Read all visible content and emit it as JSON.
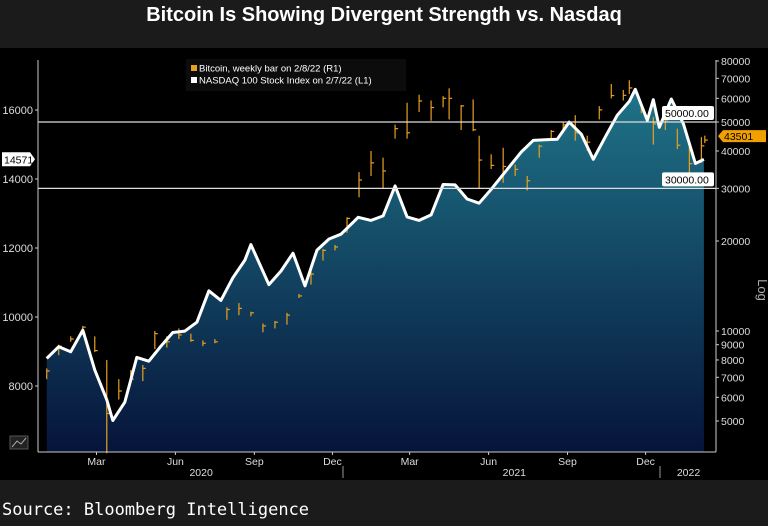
{
  "title": "Bitcoin Is Showing Divergent Strength vs. Nasdaq",
  "source": "Source: Bloomberg Intelligence",
  "chart_data": {
    "type": "line",
    "scale_label": "Log",
    "legend": {
      "placement": "top-center",
      "entries": [
        {
          "label": "Bitcoin, weekly bar on 2/8/22 (R1)",
          "color": "#e8a020"
        },
        {
          "label": "NASDAQ 100 Stock Index on 2/7/22 (L1)",
          "color": "#ffffff"
        }
      ]
    },
    "left_axis": {
      "ticks": [
        "8000",
        "10000",
        "12000",
        "14000",
        "16000"
      ],
      "range": [
        6700,
        17500
      ],
      "last_value_label": "14571"
    },
    "right_axis": {
      "scale": "log",
      "ticks": [
        "5000",
        "6000",
        "7000",
        "8000",
        "9000",
        "10000",
        "20000",
        "30000",
        "40000",
        "50000",
        "60000",
        "70000",
        "80000"
      ],
      "range": [
        4000,
        82000
      ],
      "last_value_label": "43501"
    },
    "reference_lines": [
      {
        "value": 50000,
        "label": "50000.00"
      },
      {
        "value": 30000,
        "label": "30000.00"
      }
    ],
    "x_ticks": [
      "Mar",
      "Jun",
      "Sep",
      "Dec",
      "Mar",
      "Jun",
      "Sep",
      "Dec"
    ],
    "x_tick_dates": [
      "2020-03-01",
      "2020-06-01",
      "2020-09-01",
      "2020-12-01",
      "2021-03-01",
      "2021-06-01",
      "2021-09-01",
      "2021-12-01"
    ],
    "x_years": [
      {
        "label": "2020",
        "date": "2020-07-01"
      },
      {
        "label": "2021",
        "date": "2021-07-01"
      },
      {
        "label": "2022",
        "date": "2022-01-20"
      }
    ],
    "colors": {
      "nasdaq_line": "#ffffff",
      "bitcoin_bars": "#e8a020",
      "area_top": "#1f7488",
      "area_bottom": "#06143a"
    },
    "series": [
      {
        "name": "NASDAQ 100 Stock Index",
        "axis": "left",
        "points": [
          [
            "2020-01-03",
            8800
          ],
          [
            "2020-01-17",
            9140
          ],
          [
            "2020-01-31",
            8990
          ],
          [
            "2020-02-14",
            9620
          ],
          [
            "2020-02-28",
            8460
          ],
          [
            "2020-03-13",
            7600
          ],
          [
            "2020-03-20",
            7000
          ],
          [
            "2020-04-03",
            7530
          ],
          [
            "2020-04-17",
            8830
          ],
          [
            "2020-05-01",
            8720
          ],
          [
            "2020-05-15",
            9150
          ],
          [
            "2020-05-29",
            9550
          ],
          [
            "2020-06-12",
            9590
          ],
          [
            "2020-06-26",
            9850
          ],
          [
            "2020-07-10",
            10760
          ],
          [
            "2020-07-24",
            10480
          ],
          [
            "2020-08-07",
            11140
          ],
          [
            "2020-08-21",
            11650
          ],
          [
            "2020-08-28",
            12100
          ],
          [
            "2020-09-18",
            10940
          ],
          [
            "2020-10-02",
            11330
          ],
          [
            "2020-10-16",
            11850
          ],
          [
            "2020-10-30",
            10900
          ],
          [
            "2020-11-13",
            11940
          ],
          [
            "2020-11-27",
            12260
          ],
          [
            "2020-12-11",
            12400
          ],
          [
            "2020-12-31",
            12890
          ],
          [
            "2021-01-15",
            12800
          ],
          [
            "2021-01-29",
            12930
          ],
          [
            "2021-02-12",
            13800
          ],
          [
            "2021-02-26",
            12900
          ],
          [
            "2021-03-12",
            12800
          ],
          [
            "2021-03-26",
            12960
          ],
          [
            "2021-04-09",
            13840
          ],
          [
            "2021-04-23",
            13830
          ],
          [
            "2021-05-07",
            13420
          ],
          [
            "2021-05-21",
            13300
          ],
          [
            "2021-06-04",
            13700
          ],
          [
            "2021-06-25",
            14350
          ],
          [
            "2021-07-09",
            14780
          ],
          [
            "2021-07-23",
            15120
          ],
          [
            "2021-08-06",
            15140
          ],
          [
            "2021-08-20",
            15150
          ],
          [
            "2021-09-03",
            15650
          ],
          [
            "2021-09-17",
            15300
          ],
          [
            "2021-10-01",
            14570
          ],
          [
            "2021-10-15",
            15220
          ],
          [
            "2021-10-29",
            15850
          ],
          [
            "2021-11-12",
            16250
          ],
          [
            "2021-11-19",
            16600
          ],
          [
            "2021-12-03",
            15700
          ],
          [
            "2021-12-10",
            16300
          ],
          [
            "2021-12-17",
            15500
          ],
          [
            "2021-12-31",
            16320
          ],
          [
            "2022-01-14",
            15600
          ],
          [
            "2022-01-28",
            14450
          ],
          [
            "2022-02-07",
            14571
          ]
        ]
      },
      {
        "name": "Bitcoin",
        "axis": "right",
        "bar_fields": [
          "date",
          "high",
          "low",
          "close"
        ],
        "bars": [
          [
            "2020-01-03",
            7500,
            6900,
            7350
          ],
          [
            "2020-01-17",
            9000,
            8300,
            8900
          ],
          [
            "2020-01-31",
            9600,
            9200,
            9400
          ],
          [
            "2020-02-14",
            10400,
            9700,
            10300
          ],
          [
            "2020-02-28",
            9600,
            8500,
            8600
          ],
          [
            "2020-03-13",
            8000,
            3900,
            5300
          ],
          [
            "2020-03-27",
            6900,
            5900,
            6300
          ],
          [
            "2020-04-10",
            7400,
            6700,
            6900
          ],
          [
            "2020-04-24",
            7700,
            6800,
            7500
          ],
          [
            "2020-05-08",
            10000,
            8700,
            9800
          ],
          [
            "2020-05-22",
            9600,
            8800,
            9200
          ],
          [
            "2020-06-05",
            10200,
            9400,
            9700
          ],
          [
            "2020-06-19",
            9800,
            9200,
            9300
          ],
          [
            "2020-07-03",
            9300,
            8900,
            9100
          ],
          [
            "2020-07-17",
            9400,
            9100,
            9200
          ],
          [
            "2020-07-31",
            12000,
            10900,
            11800
          ],
          [
            "2020-08-14",
            12400,
            11300,
            11900
          ],
          [
            "2020-08-28",
            11600,
            11200,
            11500
          ],
          [
            "2020-09-11",
            10600,
            9900,
            10400
          ],
          [
            "2020-09-25",
            10800,
            10200,
            10700
          ],
          [
            "2020-10-09",
            11500,
            10500,
            11300
          ],
          [
            "2020-10-23",
            13300,
            12900,
            13100
          ],
          [
            "2020-11-06",
            15900,
            14300,
            15500
          ],
          [
            "2020-11-20",
            18800,
            17200,
            18600
          ],
          [
            "2020-12-04",
            19400,
            18600,
            19100
          ],
          [
            "2020-12-18",
            24000,
            21300,
            23800
          ],
          [
            "2021-01-01",
            34000,
            28000,
            32000
          ],
          [
            "2021-01-15",
            40000,
            33000,
            36500
          ],
          [
            "2021-01-29",
            38000,
            30000,
            34300
          ],
          [
            "2021-02-12",
            49000,
            44000,
            47500
          ],
          [
            "2021-02-26",
            58000,
            44000,
            46000
          ],
          [
            "2021-03-12",
            61700,
            54000,
            58800
          ],
          [
            "2021-03-26",
            59000,
            50500,
            55900
          ],
          [
            "2021-04-09",
            61000,
            56000,
            60000
          ],
          [
            "2021-04-16",
            64800,
            51000,
            60000
          ],
          [
            "2021-04-30",
            57000,
            47000,
            56600
          ],
          [
            "2021-05-14",
            59500,
            46600,
            47100
          ],
          [
            "2021-05-21",
            45000,
            30000,
            37300
          ],
          [
            "2021-06-04",
            39000,
            34800,
            35800
          ],
          [
            "2021-06-18",
            41000,
            31300,
            35500
          ],
          [
            "2021-07-02",
            36000,
            33000,
            34700
          ],
          [
            "2021-07-16",
            33000,
            29500,
            31800
          ],
          [
            "2021-07-30",
            42000,
            38000,
            41500
          ],
          [
            "2021-08-13",
            47000,
            43800,
            46500
          ],
          [
            "2021-08-27",
            50000,
            46000,
            48900
          ],
          [
            "2021-09-10",
            52700,
            43300,
            46000
          ],
          [
            "2021-09-24",
            45000,
            40000,
            42800
          ],
          [
            "2021-10-08",
            56500,
            51000,
            54900
          ],
          [
            "2021-10-22",
            67000,
            60000,
            61300
          ],
          [
            "2021-11-05",
            64000,
            59000,
            61400
          ],
          [
            "2021-11-12",
            69000,
            62000,
            65000
          ],
          [
            "2021-11-26",
            58000,
            53500,
            54700
          ],
          [
            "2021-12-10",
            52000,
            42000,
            49300
          ],
          [
            "2021-12-24",
            51800,
            47000,
            50800
          ],
          [
            "2022-01-07",
            47500,
            40600,
            41800
          ],
          [
            "2022-01-21",
            43000,
            33000,
            36300
          ],
          [
            "2022-02-04",
            44500,
            36500,
            41600
          ],
          [
            "2022-02-08",
            45000,
            42500,
            43501
          ]
        ]
      }
    ]
  }
}
